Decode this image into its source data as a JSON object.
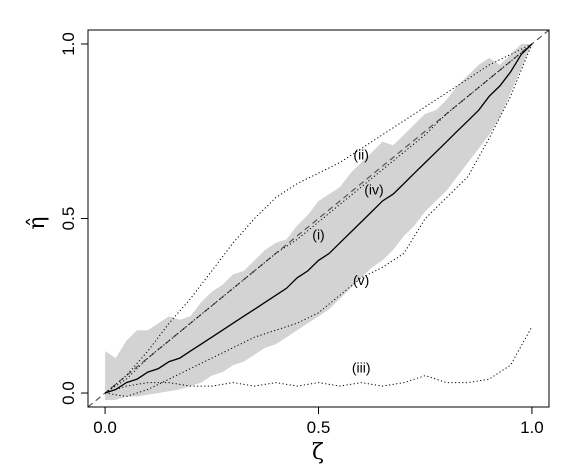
{
  "chart_data": {
    "type": "line",
    "title": "",
    "xlabel": "ζ",
    "ylabel": "η̂",
    "xlim": [
      -0.04,
      1.04
    ],
    "ylim": [
      -0.04,
      1.04
    ],
    "grid": false,
    "legend": "none",
    "x_ticks": [
      {
        "value": 0.0,
        "label": "0.0"
      },
      {
        "value": 0.5,
        "label": "0.5"
      },
      {
        "value": 1.0,
        "label": "1.0"
      }
    ],
    "y_ticks": [
      {
        "value": 0.0,
        "label": "0.0"
      },
      {
        "value": 0.5,
        "label": "0.5"
      },
      {
        "value": 1.0,
        "label": "1.0"
      }
    ],
    "band": {
      "x": [
        0,
        0.025,
        0.05,
        0.075,
        0.1,
        0.125,
        0.15,
        0.175,
        0.2,
        0.225,
        0.25,
        0.275,
        0.3,
        0.325,
        0.35,
        0.375,
        0.4,
        0.425,
        0.45,
        0.475,
        0.5,
        0.525,
        0.55,
        0.575,
        0.6,
        0.625,
        0.65,
        0.675,
        0.7,
        0.725,
        0.75,
        0.775,
        0.8,
        0.825,
        0.85,
        0.875,
        0.9,
        0.925,
        0.95,
        0.975,
        1.0
      ],
      "lower": [
        -0.02,
        -0.02,
        -0.01,
        -0.01,
        -0.005,
        0.0,
        0.005,
        0.01,
        0.02,
        0.03,
        0.05,
        0.06,
        0.08,
        0.09,
        0.11,
        0.13,
        0.14,
        0.16,
        0.18,
        0.2,
        0.22,
        0.24,
        0.27,
        0.3,
        0.33,
        0.36,
        0.38,
        0.41,
        0.45,
        0.48,
        0.52,
        0.55,
        0.58,
        0.62,
        0.66,
        0.7,
        0.74,
        0.79,
        0.86,
        0.93,
        1.0
      ],
      "upper": [
        0.12,
        0.1,
        0.15,
        0.18,
        0.18,
        0.2,
        0.22,
        0.21,
        0.22,
        0.26,
        0.29,
        0.31,
        0.34,
        0.35,
        0.38,
        0.41,
        0.43,
        0.44,
        0.48,
        0.51,
        0.55,
        0.57,
        0.59,
        0.63,
        0.66,
        0.69,
        0.72,
        0.71,
        0.74,
        0.77,
        0.8,
        0.81,
        0.84,
        0.88,
        0.91,
        0.94,
        0.96,
        0.94,
        0.97,
        1.0,
        1.0
      ]
    },
    "reference_line": {
      "x": [
        -0.04,
        1.04
      ],
      "y": [
        -0.04,
        1.04
      ],
      "style": "dashed"
    },
    "series": [
      {
        "label": "(i)",
        "style": "solid",
        "x": [
          0,
          0.025,
          0.05,
          0.075,
          0.1,
          0.125,
          0.15,
          0.175,
          0.2,
          0.225,
          0.25,
          0.275,
          0.3,
          0.325,
          0.35,
          0.375,
          0.4,
          0.425,
          0.45,
          0.475,
          0.5,
          0.525,
          0.55,
          0.575,
          0.6,
          0.625,
          0.65,
          0.675,
          0.7,
          0.725,
          0.75,
          0.775,
          0.8,
          0.825,
          0.85,
          0.875,
          0.9,
          0.925,
          0.95,
          0.975,
          1.0
        ],
        "y": [
          0.0,
          0.01,
          0.03,
          0.04,
          0.06,
          0.07,
          0.09,
          0.1,
          0.12,
          0.14,
          0.16,
          0.18,
          0.2,
          0.22,
          0.24,
          0.26,
          0.28,
          0.3,
          0.33,
          0.35,
          0.38,
          0.4,
          0.43,
          0.46,
          0.49,
          0.52,
          0.55,
          0.57,
          0.6,
          0.63,
          0.66,
          0.69,
          0.72,
          0.75,
          0.78,
          0.81,
          0.85,
          0.88,
          0.92,
          0.97,
          1.0
        ],
        "label_pos": [
          0.5,
          0.45
        ]
      },
      {
        "label": "(ii)",
        "style": "dotted",
        "x": [
          0,
          0.05,
          0.1,
          0.15,
          0.2,
          0.25,
          0.3,
          0.35,
          0.4,
          0.45,
          0.5,
          0.55,
          0.6,
          0.65,
          0.7,
          0.75,
          0.8,
          0.85,
          0.9,
          0.95,
          1.0
        ],
        "y": [
          0.0,
          0.05,
          0.12,
          0.2,
          0.27,
          0.35,
          0.43,
          0.5,
          0.56,
          0.6,
          0.63,
          0.66,
          0.7,
          0.74,
          0.78,
          0.82,
          0.86,
          0.9,
          0.94,
          0.97,
          1.0
        ],
        "label_pos": [
          0.6,
          0.68
        ]
      },
      {
        "label": "(iii)",
        "style": "dotted",
        "x": [
          0,
          0.05,
          0.1,
          0.15,
          0.2,
          0.25,
          0.3,
          0.35,
          0.4,
          0.45,
          0.5,
          0.55,
          0.6,
          0.65,
          0.7,
          0.75,
          0.8,
          0.85,
          0.9,
          0.95,
          1.0
        ],
        "y": [
          0.0,
          0.02,
          0.03,
          0.03,
          0.02,
          0.02,
          0.03,
          0.02,
          0.03,
          0.02,
          0.03,
          0.02,
          0.03,
          0.02,
          0.03,
          0.05,
          0.03,
          0.03,
          0.04,
          0.08,
          0.19
        ],
        "label_pos": [
          0.6,
          0.07
        ]
      },
      {
        "label": "(iv)",
        "style": "dotted",
        "x": [
          0,
          0.05,
          0.1,
          0.15,
          0.2,
          0.25,
          0.3,
          0.35,
          0.4,
          0.45,
          0.5,
          0.55,
          0.6,
          0.65,
          0.7,
          0.75,
          0.8,
          0.85,
          0.9,
          0.95,
          1.0
        ],
        "y": [
          0.0,
          0.04,
          0.1,
          0.15,
          0.2,
          0.25,
          0.3,
          0.35,
          0.4,
          0.44,
          0.49,
          0.54,
          0.59,
          0.64,
          0.69,
          0.74,
          0.8,
          0.85,
          0.9,
          0.95,
          1.0
        ],
        "label_pos": [
          0.63,
          0.58
        ]
      },
      {
        "label": "(v)",
        "style": "dotted",
        "x": [
          0,
          0.05,
          0.1,
          0.15,
          0.2,
          0.25,
          0.3,
          0.35,
          0.4,
          0.45,
          0.5,
          0.55,
          0.6,
          0.65,
          0.7,
          0.75,
          0.8,
          0.85,
          0.9,
          0.95,
          1.0
        ],
        "y": [
          0.0,
          -0.01,
          0.01,
          0.04,
          0.07,
          0.1,
          0.13,
          0.16,
          0.18,
          0.2,
          0.23,
          0.28,
          0.33,
          0.36,
          0.4,
          0.5,
          0.56,
          0.62,
          0.73,
          0.85,
          1.0
        ],
        "label_pos": [
          0.6,
          0.32
        ]
      }
    ]
  }
}
